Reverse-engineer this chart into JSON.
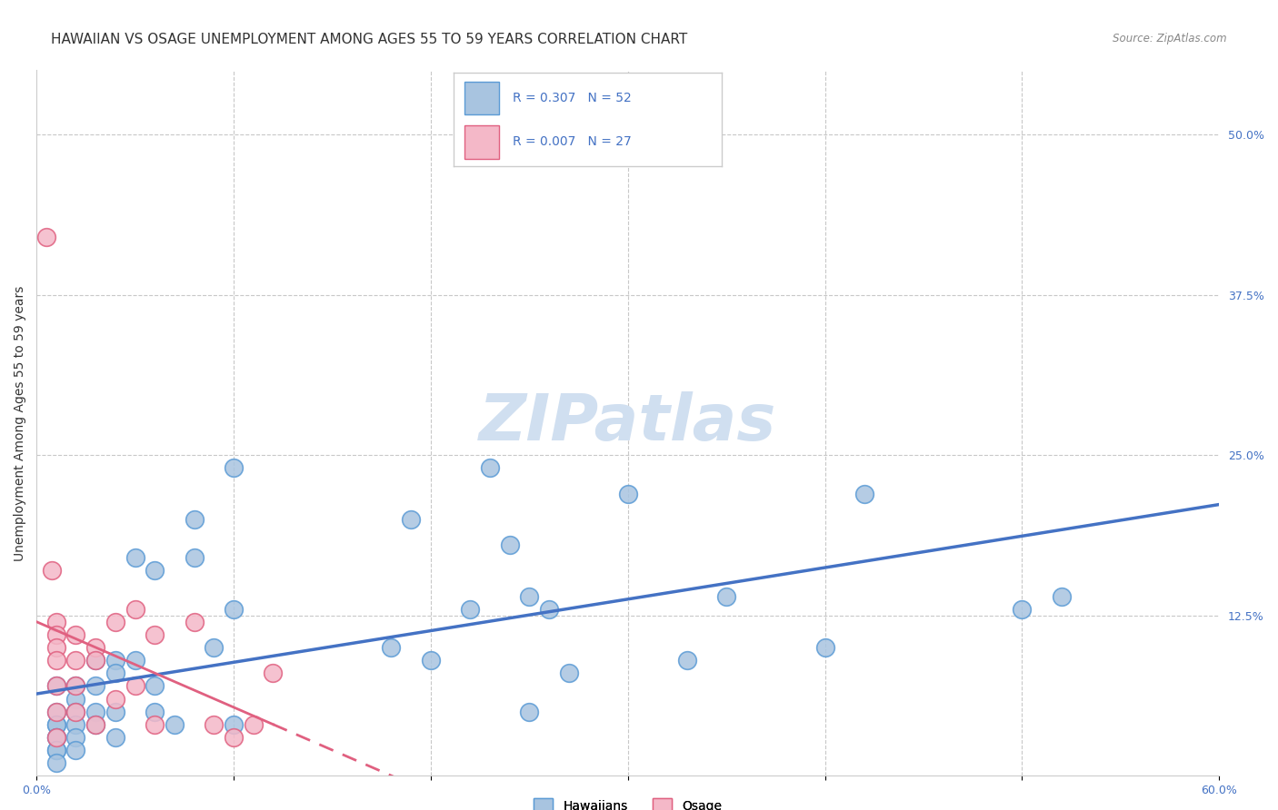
{
  "title": "HAWAIIAN VS OSAGE UNEMPLOYMENT AMONG AGES 55 TO 59 YEARS CORRELATION CHART",
  "source": "Source: ZipAtlas.com",
  "ylabel": "Unemployment Among Ages 55 to 59 years",
  "xlim": [
    0.0,
    0.6
  ],
  "ylim": [
    0.0,
    0.55
  ],
  "xticks": [
    0.0,
    0.1,
    0.2,
    0.3,
    0.4,
    0.5,
    0.6
  ],
  "xticklabels": [
    "0.0%",
    "",
    "",
    "",
    "",
    "",
    "60.0%"
  ],
  "ytick_right_labels": [
    "50.0%",
    "37.5%",
    "25.0%",
    "12.5%"
  ],
  "ytick_right_values": [
    0.5,
    0.375,
    0.25,
    0.125
  ],
  "hawaiian_R": "0.307",
  "hawaiian_N": "52",
  "osage_R": "0.007",
  "osage_N": "27",
  "hawaiian_color": "#a8c4e0",
  "hawaiian_edge_color": "#5b9bd5",
  "osage_color": "#f4b8c8",
  "osage_edge_color": "#e06080",
  "trend_hawaiian_color": "#4472c4",
  "trend_osage_color": "#e06080",
  "background_color": "#ffffff",
  "watermark_text": "ZIPatlas",
  "hawaiian_x": [
    0.01,
    0.01,
    0.01,
    0.01,
    0.01,
    0.01,
    0.01,
    0.01,
    0.01,
    0.02,
    0.02,
    0.02,
    0.02,
    0.02,
    0.02,
    0.03,
    0.03,
    0.03,
    0.03,
    0.04,
    0.04,
    0.04,
    0.04,
    0.05,
    0.05,
    0.06,
    0.06,
    0.06,
    0.07,
    0.08,
    0.08,
    0.09,
    0.1,
    0.1,
    0.1,
    0.18,
    0.19,
    0.2,
    0.22,
    0.23,
    0.24,
    0.25,
    0.25,
    0.26,
    0.27,
    0.3,
    0.33,
    0.35,
    0.4,
    0.42,
    0.5,
    0.52
  ],
  "hawaiian_y": [
    0.07,
    0.05,
    0.04,
    0.04,
    0.03,
    0.03,
    0.02,
    0.02,
    0.01,
    0.07,
    0.06,
    0.05,
    0.04,
    0.03,
    0.02,
    0.09,
    0.07,
    0.05,
    0.04,
    0.09,
    0.08,
    0.05,
    0.03,
    0.17,
    0.09,
    0.16,
    0.07,
    0.05,
    0.04,
    0.2,
    0.17,
    0.1,
    0.24,
    0.13,
    0.04,
    0.1,
    0.2,
    0.09,
    0.13,
    0.24,
    0.18,
    0.05,
    0.14,
    0.13,
    0.08,
    0.22,
    0.09,
    0.14,
    0.1,
    0.22,
    0.13,
    0.14
  ],
  "osage_x": [
    0.005,
    0.008,
    0.01,
    0.01,
    0.01,
    0.01,
    0.01,
    0.01,
    0.01,
    0.02,
    0.02,
    0.02,
    0.02,
    0.03,
    0.03,
    0.03,
    0.04,
    0.04,
    0.05,
    0.05,
    0.06,
    0.06,
    0.08,
    0.09,
    0.1,
    0.11,
    0.12
  ],
  "osage_y": [
    0.42,
    0.16,
    0.12,
    0.11,
    0.1,
    0.09,
    0.07,
    0.05,
    0.03,
    0.11,
    0.09,
    0.07,
    0.05,
    0.1,
    0.09,
    0.04,
    0.12,
    0.06,
    0.13,
    0.07,
    0.11,
    0.04,
    0.12,
    0.04,
    0.03,
    0.04,
    0.08
  ],
  "grid_color": "#c8c8c8",
  "title_fontsize": 11,
  "axis_label_fontsize": 10,
  "tick_fontsize": 9,
  "legend_fontsize": 10,
  "watermark_color": "#d0dff0",
  "watermark_fontsize": 52
}
